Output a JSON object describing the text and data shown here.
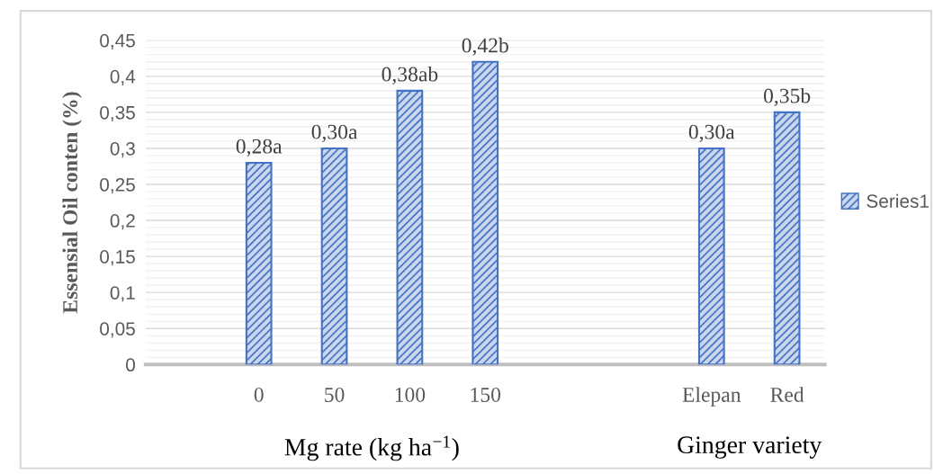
{
  "chart_data": {
    "type": "bar",
    "ylabel": "Essensial Oil conten (%)",
    "categories": [
      null,
      "0",
      "50",
      "100",
      "150",
      null,
      null,
      "Elepan",
      "Red"
    ],
    "series": [
      {
        "name": "Series1",
        "color": "#4472c4",
        "values": [
          null,
          0.28,
          0.3,
          0.38,
          0.42,
          null,
          null,
          0.3,
          0.35
        ],
        "value_labels": [
          null,
          "0,28a",
          "0,30a",
          "0,38ab",
          "0,42b",
          null,
          null,
          "0,30a",
          "0,35b"
        ]
      }
    ],
    "ylim": [
      0,
      0.45
    ],
    "yticks": [
      {
        "value": 0,
        "label": "0"
      },
      {
        "value": 0.05,
        "label": "0,05"
      },
      {
        "value": 0.1,
        "label": "0,1"
      },
      {
        "value": 0.15,
        "label": "0,15"
      },
      {
        "value": 0.2,
        "label": "0,2"
      },
      {
        "value": 0.25,
        "label": "0,25"
      },
      {
        "value": 0.3,
        "label": "0,3"
      },
      {
        "value": 0.35,
        "label": "0,35"
      },
      {
        "value": 0.4,
        "label": "0,4"
      },
      {
        "value": 0.45,
        "label": "0,45"
      }
    ],
    "annotations": [
      "Mg rate (kg ha$^{−1}$)",
      "Ginger variety"
    ],
    "grid": "y",
    "legend": "right"
  }
}
